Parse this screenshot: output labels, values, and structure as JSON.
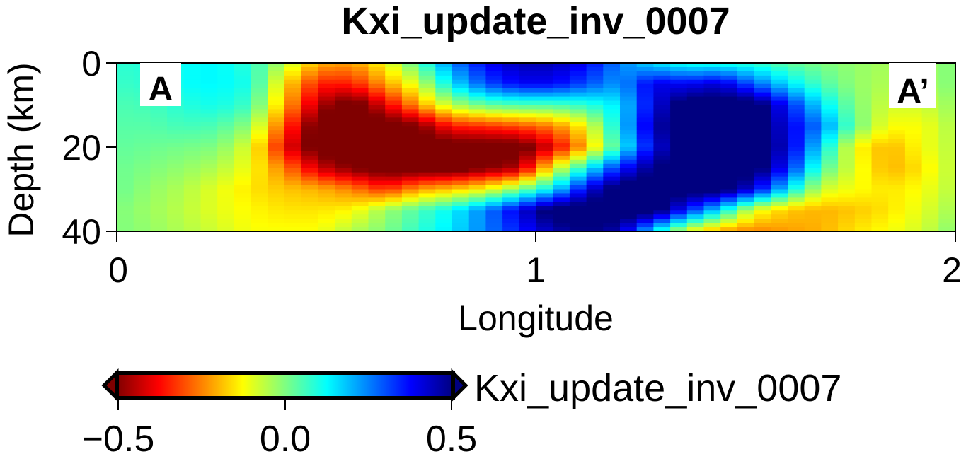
{
  "chart_data": {
    "type": "heatmap",
    "title": "Kxi_update_inv_0007",
    "xlabel": "Longitude",
    "ylabel": "Depth (km)",
    "xlim": [
      0,
      2
    ],
    "ylim": [
      0,
      40
    ],
    "y_inverted": true,
    "xticks": [
      "0",
      "1",
      "2"
    ],
    "yticks": [
      "0",
      "20",
      "40"
    ],
    "grid": false,
    "annotations": {
      "left": "A",
      "right": "A’"
    },
    "colorbar": {
      "label": "Kxi_update_inv_0007",
      "range": [
        -0.5,
        0.5
      ],
      "ticks": [
        "−0.5",
        "0.0",
        "0.5"
      ],
      "colormap": "jet reversed (negative red, positive blue)",
      "placement": "bottom-left"
    },
    "grid_lon": [
      0,
      0.08,
      0.16,
      0.24,
      0.32,
      0.4,
      0.48,
      0.56,
      0.64,
      0.72,
      0.8,
      0.88,
      0.96,
      1.04,
      1.12,
      1.2,
      1.28,
      1.36,
      1.44,
      1.52,
      1.6,
      1.68,
      1.76,
      1.84,
      1.92,
      2.0
    ],
    "grid_depth": [
      0,
      5,
      10,
      15,
      20,
      25,
      30,
      35,
      40
    ],
    "values": [
      [
        0.08,
        0.09,
        0.12,
        0.13,
        0.08,
        -0.05,
        -0.2,
        -0.22,
        -0.12,
        0.05,
        0.25,
        0.38,
        0.45,
        0.45,
        0.38,
        0.25,
        0.15,
        0.1,
        0.1,
        0.08,
        0.03,
        0.0,
        -0.02,
        -0.04,
        -0.03,
        0.0
      ],
      [
        0.07,
        0.08,
        0.12,
        0.13,
        0.1,
        -0.15,
        -0.35,
        -0.35,
        -0.22,
        -0.08,
        0.15,
        0.3,
        0.38,
        0.38,
        0.3,
        0.22,
        0.4,
        0.38,
        0.42,
        0.28,
        0.15,
        0.05,
        -0.02,
        -0.05,
        -0.04,
        0.0
      ],
      [
        0.05,
        0.06,
        0.09,
        0.11,
        0.06,
        -0.2,
        -0.45,
        -0.55,
        -0.4,
        -0.22,
        -0.05,
        0.03,
        0.05,
        0.05,
        0.08,
        0.15,
        0.4,
        0.55,
        0.55,
        0.55,
        0.35,
        0.15,
        0.0,
        -0.08,
        -0.08,
        -0.02
      ],
      [
        0.04,
        0.04,
        0.06,
        0.05,
        -0.02,
        -0.3,
        -0.55,
        -0.55,
        -0.55,
        -0.5,
        -0.35,
        -0.33,
        -0.3,
        -0.25,
        -0.12,
        0.15,
        0.45,
        0.55,
        0.55,
        0.55,
        0.4,
        0.25,
        0.02,
        -0.12,
        -0.12,
        -0.04
      ],
      [
        0.03,
        0.02,
        0.01,
        0.0,
        -0.1,
        -0.38,
        -0.55,
        -0.55,
        -0.55,
        -0.55,
        -0.55,
        -0.55,
        -0.55,
        -0.4,
        -0.2,
        0.1,
        0.4,
        0.55,
        0.55,
        0.55,
        0.42,
        0.15,
        -0.12,
        -0.2,
        -0.12,
        -0.05
      ],
      [
        0.02,
        0.0,
        -0.02,
        -0.05,
        -0.12,
        -0.25,
        -0.42,
        -0.5,
        -0.55,
        -0.55,
        -0.55,
        -0.5,
        -0.45,
        -0.12,
        0.12,
        0.35,
        0.5,
        0.55,
        0.55,
        0.55,
        0.35,
        0.05,
        -0.1,
        -0.2,
        -0.15,
        -0.05
      ],
      [
        0.02,
        -0.02,
        -0.05,
        -0.1,
        -0.15,
        -0.18,
        -0.2,
        -0.25,
        -0.33,
        -0.22,
        -0.18,
        -0.12,
        0.0,
        0.15,
        0.4,
        0.55,
        0.55,
        0.55,
        0.55,
        0.4,
        0.15,
        -0.08,
        -0.12,
        -0.15,
        -0.12,
        -0.05
      ],
      [
        0.0,
        -0.03,
        -0.06,
        -0.1,
        -0.13,
        -0.15,
        -0.15,
        -0.13,
        -0.03,
        0.05,
        0.13,
        0.25,
        0.4,
        0.55,
        0.55,
        0.55,
        0.55,
        0.35,
        0.15,
        -0.1,
        -0.18,
        -0.2,
        -0.18,
        -0.15,
        -0.1,
        -0.03
      ],
      [
        0.0,
        -0.02,
        -0.05,
        -0.08,
        -0.12,
        -0.12,
        -0.12,
        -0.05,
        0.0,
        0.08,
        0.15,
        0.25,
        0.35,
        0.45,
        0.5,
        0.45,
        0.15,
        -0.1,
        -0.22,
        -0.25,
        -0.22,
        -0.2,
        -0.15,
        -0.12,
        -0.08,
        0.0
      ]
    ]
  }
}
